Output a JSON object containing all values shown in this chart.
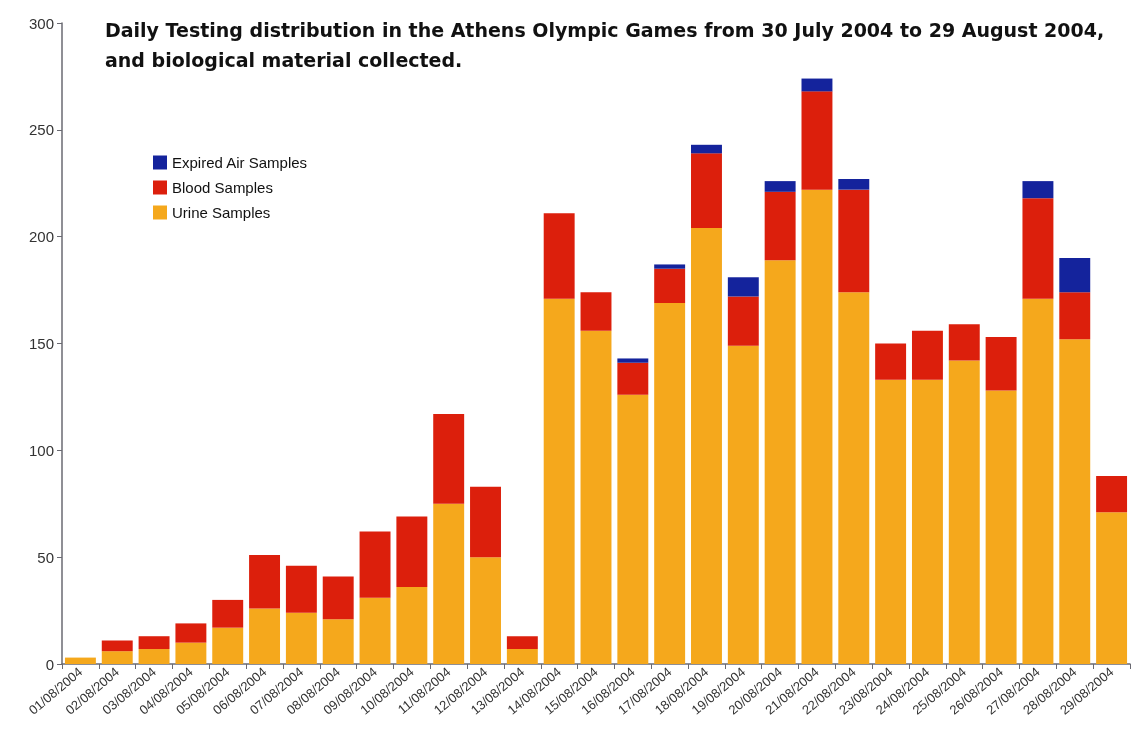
{
  "chart_data": {
    "type": "bar",
    "title": "Daily Testing distribution in the Athens Olympic Games from 30 July 2004 to 29 August 2004, and biological material collected.",
    "categories": [
      "01/08/2004",
      "02/08/2004",
      "03/08/2004",
      "04/08/2004",
      "05/08/2004",
      "06/08/2004",
      "07/08/2004",
      "08/08/2004",
      "09/08/2004",
      "10/08/2004",
      "11/08/2004",
      "12/08/2004",
      "13/08/2004",
      "14/08/2004",
      "15/08/2004",
      "16/08/2004",
      "17/08/2004",
      "18/08/2004",
      "19/08/2004",
      "20/08/2004",
      "21/08/2004",
      "22/08/2004",
      "23/08/2004",
      "24/08/2004",
      "25/08/2004",
      "26/08/2004",
      "27/08/2004",
      "28/08/2004",
      "29/08/2004"
    ],
    "stacked": true,
    "series": [
      {
        "name": "Urine Samples",
        "color": "#f5a81c",
        "values": [
          3,
          6,
          7,
          10,
          17,
          26,
          24,
          21,
          31,
          36,
          75,
          50,
          7,
          171,
          156,
          126,
          169,
          204,
          149,
          189,
          222,
          174,
          133,
          133,
          142,
          128,
          171,
          152,
          71
        ]
      },
      {
        "name": "Blood Samples",
        "color": "#dc1f0c",
        "values": [
          null,
          5,
          6,
          9,
          13,
          25,
          22,
          20,
          31,
          33,
          42,
          33,
          6,
          40,
          18,
          15,
          16,
          35,
          23,
          32,
          46,
          48,
          17,
          23,
          17,
          25,
          47,
          22,
          17
        ]
      },
      {
        "name": "Expired Air Samples",
        "color": "#14239c",
        "values": [
          null,
          null,
          null,
          null,
          null,
          null,
          null,
          null,
          null,
          null,
          null,
          null,
          null,
          null,
          null,
          2,
          2,
          4,
          9,
          5,
          6,
          5,
          null,
          null,
          null,
          null,
          8,
          16,
          null
        ]
      }
    ],
    "ylim": [
      0,
      300
    ],
    "yticks": [
      0,
      50,
      100,
      150,
      200,
      250,
      300
    ],
    "grid": false,
    "legend": "top left"
  }
}
